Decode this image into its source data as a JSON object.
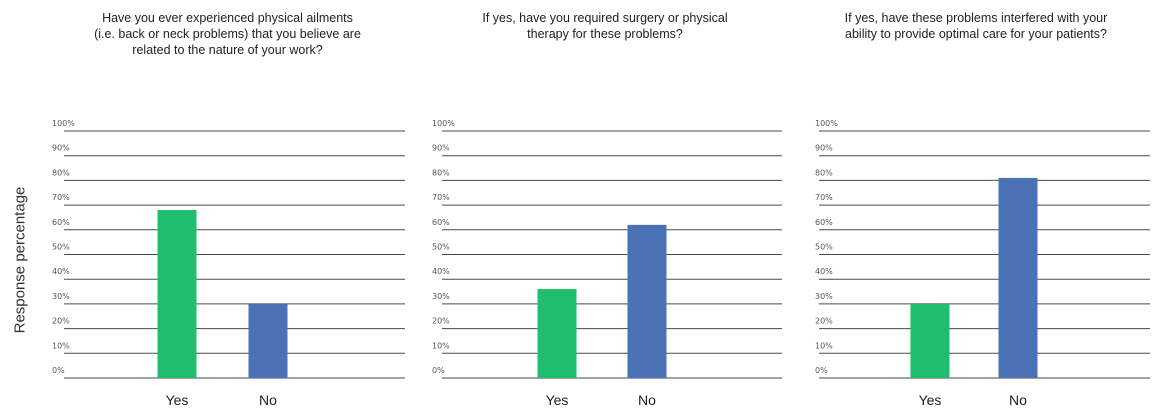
{
  "ylabel": "Response percentage",
  "colors": {
    "Yes": "#1fbe6e",
    "No": "#4a72b5",
    "grid": "#4a4a4a"
  },
  "chart_data": [
    {
      "type": "bar",
      "title": "Have you ever experienced physical ailments\n(i.e. back or neck problems) that you believe are\nrelated to the nature of your work?",
      "categories": [
        "Yes",
        "No"
      ],
      "values": [
        68,
        30
      ],
      "ylim": [
        0,
        100
      ],
      "yticks": [
        "0%",
        "10%",
        "20%",
        "30%",
        "40%",
        "50%",
        "60%",
        "70%",
        "80%",
        "90%",
        "100%"
      ],
      "grid": true
    },
    {
      "type": "bar",
      "title": "If yes, have you required surgery or physical\ntherapy for these problems?",
      "categories": [
        "Yes",
        "No"
      ],
      "values": [
        36,
        62
      ],
      "ylim": [
        0,
        100
      ],
      "yticks": [
        "0%",
        "10%",
        "20%",
        "30%",
        "40%",
        "50%",
        "60%",
        "70%",
        "80%",
        "90%",
        "100%"
      ],
      "grid": true
    },
    {
      "type": "bar",
      "title": "If yes, have these problems interfered with your\nability to provide optimal care for your patients?",
      "categories": [
        "Yes",
        "No"
      ],
      "values": [
        30,
        81
      ],
      "ylim": [
        0,
        100
      ],
      "yticks": [
        "0%",
        "10%",
        "20%",
        "30%",
        "40%",
        "50%",
        "60%",
        "70%",
        "80%",
        "90%",
        "100%"
      ],
      "grid": true
    }
  ]
}
